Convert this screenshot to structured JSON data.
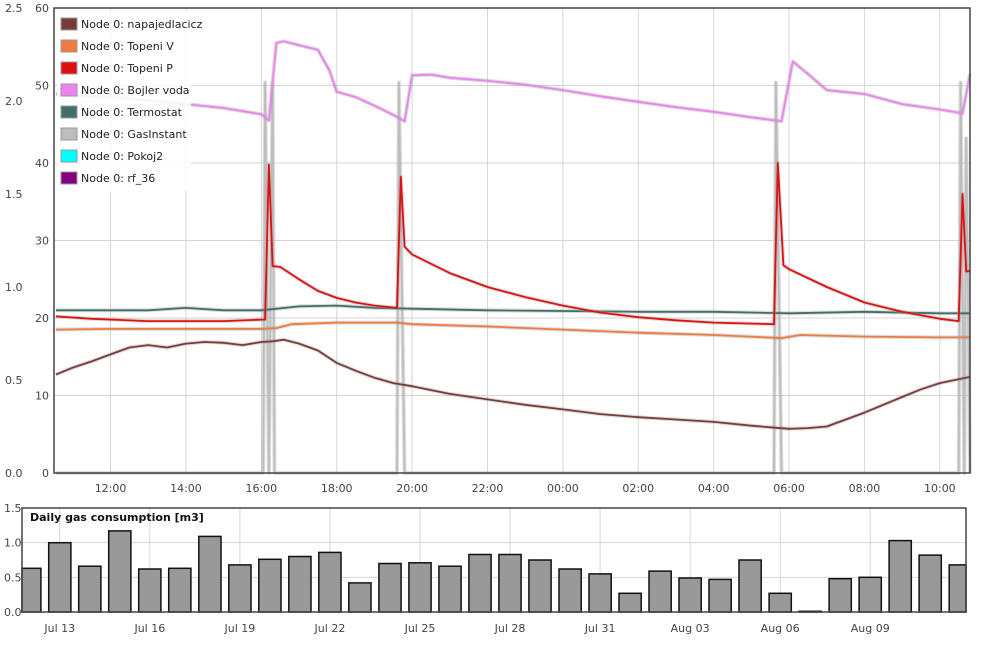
{
  "chart_data": [
    {
      "type": "line",
      "left_axis": {
        "ticks": [
          "0.0",
          "0.5",
          "1.0",
          "1.5",
          "2.0",
          "2.5"
        ],
        "range": [
          0,
          2.5
        ]
      },
      "right_axis": {
        "ticks": [
          "0",
          "10",
          "20",
          "30",
          "40",
          "50",
          "60"
        ],
        "range": [
          0,
          60
        ]
      },
      "x_ticks": [
        "12:00",
        "14:00",
        "16:00",
        "18:00",
        "20:00",
        "22:00",
        "00:00",
        "02:00",
        "04:00",
        "06:00",
        "08:00",
        "10:00"
      ],
      "x_range": [
        10.5,
        34.8
      ],
      "grid": true,
      "legend_position": "top-left",
      "series": [
        {
          "name": "Node 0: napajedlacicz",
          "color": "#7a3b3b",
          "axis": "right",
          "points": [
            [
              10.55,
              12.7
            ],
            [
              11,
              13.6
            ],
            [
              11.5,
              14.4
            ],
            [
              12,
              15.3
            ],
            [
              12.5,
              16.2
            ],
            [
              13,
              16.5
            ],
            [
              13.5,
              16.2
            ],
            [
              14,
              16.7
            ],
            [
              14.5,
              16.9
            ],
            [
              15,
              16.8
            ],
            [
              15.5,
              16.5
            ],
            [
              16,
              16.9
            ],
            [
              16.3,
              17.0
            ],
            [
              16.6,
              17.2
            ],
            [
              17,
              16.7
            ],
            [
              17.5,
              15.8
            ],
            [
              18,
              14.2
            ],
            [
              18.5,
              13.2
            ],
            [
              19,
              12.3
            ],
            [
              19.5,
              11.6
            ],
            [
              20,
              11.2
            ],
            [
              21,
              10.2
            ],
            [
              22,
              9.5
            ],
            [
              23,
              8.8
            ],
            [
              24,
              8.2
            ],
            [
              25,
              7.6
            ],
            [
              26,
              7.2
            ],
            [
              27,
              6.9
            ],
            [
              28,
              6.6
            ],
            [
              29,
              6.1
            ],
            [
              29.5,
              5.9
            ],
            [
              30,
              5.7
            ],
            [
              30.5,
              5.8
            ],
            [
              31,
              6.0
            ],
            [
              32,
              7.8
            ],
            [
              33,
              9.8
            ],
            [
              33.5,
              10.8
            ],
            [
              34,
              11.6
            ],
            [
              34.5,
              12.1
            ],
            [
              34.8,
              12.4
            ]
          ]
        },
        {
          "name": "Node 0: Topeni V",
          "color": "#f07a40",
          "axis": "right",
          "points": [
            [
              10.55,
              18.5
            ],
            [
              12,
              18.6
            ],
            [
              14,
              18.6
            ],
            [
              16,
              18.6
            ],
            [
              16.4,
              18.7
            ],
            [
              16.8,
              19.2
            ],
            [
              18,
              19.4
            ],
            [
              19.6,
              19.4
            ],
            [
              20,
              19.2
            ],
            [
              22,
              18.9
            ],
            [
              24,
              18.5
            ],
            [
              26,
              18.1
            ],
            [
              28,
              17.8
            ],
            [
              29.8,
              17.4
            ],
            [
              30.3,
              17.8
            ],
            [
              32,
              17.6
            ],
            [
              34,
              17.5
            ],
            [
              34.8,
              17.5
            ]
          ]
        },
        {
          "name": "Node 0: Topeni P",
          "color": "#e01010",
          "axis": "right",
          "points": [
            [
              10.55,
              20.2
            ],
            [
              11.5,
              19.9
            ],
            [
              13,
              19.6
            ],
            [
              15,
              19.6
            ],
            [
              16.1,
              19.8
            ],
            [
              16.2,
              39.8
            ],
            [
              16.3,
              26.7
            ],
            [
              16.5,
              26.6
            ],
            [
              17,
              25.0
            ],
            [
              17.5,
              23.5
            ],
            [
              18,
              22.6
            ],
            [
              18.5,
              22.0
            ],
            [
              19,
              21.6
            ],
            [
              19.6,
              21.3
            ],
            [
              19.7,
              38.2
            ],
            [
              19.8,
              29.2
            ],
            [
              20,
              28.2
            ],
            [
              21,
              25.8
            ],
            [
              22,
              24.0
            ],
            [
              23,
              22.7
            ],
            [
              24,
              21.6
            ],
            [
              25,
              20.7
            ],
            [
              26,
              20.1
            ],
            [
              27,
              19.7
            ],
            [
              28,
              19.4
            ],
            [
              29.6,
              19.2
            ],
            [
              29.7,
              40.0
            ],
            [
              29.85,
              26.8
            ],
            [
              30,
              26.3
            ],
            [
              31,
              24.0
            ],
            [
              32,
              22.0
            ],
            [
              33,
              20.8
            ],
            [
              34,
              19.9
            ],
            [
              34.5,
              19.6
            ],
            [
              34.6,
              36.0
            ],
            [
              34.7,
              26.0
            ],
            [
              34.8,
              26.1
            ]
          ]
        },
        {
          "name": "Node 0: Bojler voda",
          "color": "#ee82ee",
          "axis": "right",
          "points": [
            [
              10.55,
              48.9
            ],
            [
              11,
              48.7
            ],
            [
              12,
              48.5
            ],
            [
              13,
              48.1
            ],
            [
              14,
              47.6
            ],
            [
              15,
              47.1
            ],
            [
              16,
              46.3
            ],
            [
              16.2,
              45.5
            ],
            [
              16.4,
              55.5
            ],
            [
              16.6,
              55.7
            ],
            [
              17,
              55.2
            ],
            [
              17.5,
              54.6
            ],
            [
              17.8,
              52.0
            ],
            [
              18,
              49.2
            ],
            [
              18.5,
              48.5
            ],
            [
              19,
              47.4
            ],
            [
              19.5,
              46.2
            ],
            [
              19.8,
              45.4
            ],
            [
              20,
              51.3
            ],
            [
              20.5,
              51.4
            ],
            [
              21,
              51.0
            ],
            [
              22,
              50.6
            ],
            [
              23,
              50.1
            ],
            [
              24,
              49.4
            ],
            [
              25,
              48.6
            ],
            [
              26,
              47.9
            ],
            [
              27,
              47.2
            ],
            [
              28,
              46.6
            ],
            [
              29,
              45.9
            ],
            [
              29.8,
              45.4
            ],
            [
              30.1,
              53.1
            ],
            [
              30.5,
              51.5
            ],
            [
              31,
              49.4
            ],
            [
              32,
              48.9
            ],
            [
              33,
              47.6
            ],
            [
              34,
              46.9
            ],
            [
              34.5,
              46.5
            ],
            [
              34.6,
              46.4
            ],
            [
              34.8,
              51.5
            ]
          ]
        },
        {
          "name": "Node 0: Termostat",
          "color": "#3f6f6c",
          "axis": "right",
          "points": [
            [
              10.55,
              21.0
            ],
            [
              12,
              21.0
            ],
            [
              13,
              21.0
            ],
            [
              14,
              21.3
            ],
            [
              15,
              21.0
            ],
            [
              16,
              21.0
            ],
            [
              17,
              21.5
            ],
            [
              18,
              21.6
            ],
            [
              19,
              21.3
            ],
            [
              20,
              21.2
            ],
            [
              22,
              21.0
            ],
            [
              24,
              20.9
            ],
            [
              26,
              20.8
            ],
            [
              28,
              20.8
            ],
            [
              30,
              20.6
            ],
            [
              32,
              20.8
            ],
            [
              34,
              20.6
            ],
            [
              34.8,
              20.6
            ]
          ]
        },
        {
          "name": "Node 0: GasInstant",
          "color": "#bdbdbd",
          "axis": "left",
          "points": [
            [
              10.55,
              0
            ],
            [
              16.05,
              0
            ],
            [
              16.1,
              2.1
            ],
            [
              16.2,
              0
            ],
            [
              16.3,
              2.1
            ],
            [
              16.35,
              0
            ],
            [
              19.6,
              0
            ],
            [
              19.65,
              2.1
            ],
            [
              19.8,
              0
            ],
            [
              29.6,
              0
            ],
            [
              29.65,
              2.1
            ],
            [
              29.8,
              0
            ],
            [
              34.5,
              0
            ],
            [
              34.55,
              2.1
            ],
            [
              34.65,
              0
            ],
            [
              34.7,
              1.8
            ],
            [
              34.8,
              0
            ]
          ]
        },
        {
          "name": "Node 0: Pokoj2",
          "color": "#00ffff",
          "axis": "right",
          "points": []
        },
        {
          "name": "Node 0: rf_36",
          "color": "#800080",
          "axis": "right",
          "points": []
        }
      ]
    },
    {
      "type": "bar",
      "title": "Daily gas consumption [m3]",
      "y_ticks": [
        "0.0",
        "0.5",
        "1.0",
        "1.5"
      ],
      "ylim": [
        0,
        1.5
      ],
      "x_ticks": [
        "Jul 13",
        "Jul 16",
        "Jul 19",
        "Jul 22",
        "Jul 25",
        "Jul 28",
        "Jul 31",
        "Aug 03",
        "Aug 06",
        "Aug 09"
      ],
      "bar_color": "#999999",
      "values": [
        0.63,
        1.0,
        0.66,
        1.17,
        0.62,
        0.63,
        1.09,
        0.68,
        0.76,
        0.8,
        0.86,
        0.42,
        0.7,
        0.71,
        0.66,
        0.83,
        0.83,
        0.75,
        0.62,
        0.55,
        0.27,
        0.59,
        0.49,
        0.47,
        0.75,
        0.27,
        0.01,
        0.48,
        0.5,
        1.03,
        0.82,
        0.68
      ]
    }
  ]
}
